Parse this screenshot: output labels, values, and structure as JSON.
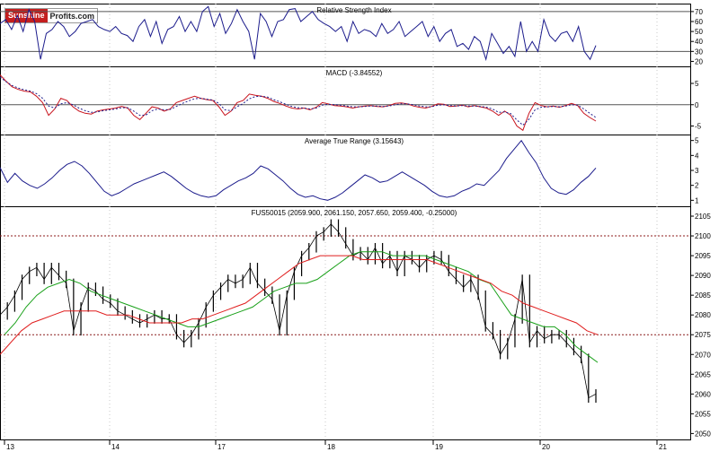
{
  "logo": {
    "part1": "Sunshine",
    "part2": "Profits.com"
  },
  "colors": {
    "rsi": "#1c1c8c",
    "macd": "#c8141e",
    "signal": "#1c1c8c",
    "atr": "#1c1c8c",
    "price": "#000000",
    "ma_short": "#18a018",
    "ma_long": "#e01e1e",
    "ref_line": "#8c1e1e",
    "grid": "#c8c8c8",
    "axis": "#000000"
  },
  "chart_data": [
    {
      "type": "line",
      "title": "Relative Strength Index",
      "y_ticks": [
        20,
        30,
        40,
        50,
        60,
        70
      ],
      "ylim": [
        15,
        78
      ],
      "reference_lines": [
        30,
        70
      ],
      "series": [
        {
          "values": [
            58,
            62,
            52,
            66,
            50,
            72,
            60,
            22,
            48,
            52,
            60,
            55,
            45,
            50,
            58,
            60,
            62,
            55,
            52,
            50,
            55,
            48,
            46,
            40,
            55,
            62,
            45,
            60,
            38,
            52,
            55,
            65,
            50,
            60,
            50,
            70,
            75,
            55,
            68,
            48,
            58,
            72,
            60,
            50,
            22,
            68,
            60,
            45,
            60,
            62,
            72,
            73,
            60,
            65,
            70,
            62,
            58,
            55,
            50,
            55,
            40,
            60,
            48,
            52,
            50,
            45,
            58,
            48,
            52,
            60,
            45,
            50,
            55,
            60,
            45,
            55,
            40,
            48,
            52,
            35,
            38,
            32,
            45,
            40,
            22,
            48,
            38,
            28,
            35,
            25,
            60,
            30,
            40,
            30,
            62,
            46,
            40,
            48,
            50,
            40,
            55,
            30,
            22,
            36
          ]
        }
      ]
    },
    {
      "type": "line",
      "title": "MACD (-3.84552)",
      "y_ticks": [
        -5,
        0,
        5
      ],
      "ylim": [
        -7,
        9
      ],
      "reference_lines": [
        0
      ],
      "series": [
        {
          "values": [
            7.0,
            5.5,
            4.2,
            3.6,
            3.2,
            3.0,
            2.0,
            0.5,
            -2.5,
            -1.0,
            1.5,
            1.0,
            -0.5,
            -1.5,
            -2.0,
            -2.2,
            -1.5,
            -1.2,
            -1.0,
            -0.8,
            -0.4,
            -0.8,
            -2.5,
            -3.5,
            -2.0,
            -0.5,
            -0.8,
            -1.5,
            -1.0,
            0.5,
            1.0,
            1.5,
            2.0,
            1.5,
            1.2,
            1.0,
            -0.5,
            -2.5,
            -1.5,
            0.5,
            1.0,
            2.5,
            2.2,
            2.0,
            1.5,
            0.8,
            0.3,
            -0.3,
            -0.8,
            -1.0,
            -0.8,
            -1.2,
            -0.6,
            0.5,
            0.2,
            -0.2,
            -0.3,
            -0.5,
            -0.8,
            -0.5,
            -0.3,
            -0.2,
            -0.4,
            -0.5,
            -0.2,
            0.3,
            0.4,
            0.2,
            -0.3,
            -0.6,
            -0.8,
            -0.4,
            0.2,
            0.1,
            -0.4,
            -0.3,
            -0.1,
            -0.5,
            -0.2,
            -0.5,
            -0.8,
            -1.5,
            -2.5,
            -1.5,
            -2.5,
            -5.0,
            -6.0,
            -2.0,
            0.5,
            -0.2,
            -0.5,
            -0.3,
            -0.6,
            -0.2,
            0.3,
            -0.2,
            -2.0,
            -3.0,
            -3.85
          ]
        },
        {
          "values": [
            6.5,
            5.4,
            4.5,
            3.9,
            3.5,
            3.2,
            2.6,
            1.5,
            -0.3,
            -0.8,
            0.2,
            0.5,
            0.0,
            -0.8,
            -1.4,
            -1.8,
            -1.7,
            -1.4,
            -1.2,
            -1.0,
            -0.7,
            -0.7,
            -1.5,
            -2.5,
            -2.4,
            -1.4,
            -1.0,
            -1.2,
            -1.1,
            -0.4,
            0.3,
            0.9,
            1.4,
            1.5,
            1.3,
            1.1,
            0.3,
            -1.2,
            -1.4,
            -0.5,
            0.3,
            1.4,
            1.9,
            2.0,
            1.8,
            1.2,
            0.7,
            0.1,
            -0.4,
            -0.7,
            -0.8,
            -1.0,
            -0.8,
            -0.1,
            0.1,
            0.0,
            -0.1,
            -0.3,
            -0.5,
            -0.5,
            -0.4,
            -0.3,
            -0.3,
            -0.4,
            -0.3,
            0.0,
            0.2,
            0.2,
            0.0,
            -0.3,
            -0.5,
            -0.5,
            -0.1,
            0.0,
            -0.2,
            -0.3,
            -0.2,
            -0.3,
            -0.3,
            -0.4,
            -0.6,
            -1.0,
            -1.8,
            -1.7,
            -2.1,
            -3.6,
            -4.8,
            -3.4,
            -1.2,
            -0.6,
            -0.5,
            -0.4,
            -0.5,
            -0.3,
            0.0,
            -0.1,
            -1.0,
            -2.0,
            -3.0
          ]
        }
      ]
    },
    {
      "type": "line",
      "title": "Average True Range (3.15643)",
      "y_ticks": [
        1,
        2,
        3,
        4,
        5
      ],
      "ylim": [
        0.6,
        5.4
      ],
      "series": [
        {
          "values": [
            3.2,
            2.2,
            2.8,
            2.3,
            2.0,
            1.8,
            2.1,
            2.5,
            3.0,
            3.4,
            3.6,
            3.3,
            2.8,
            2.2,
            1.6,
            1.3,
            1.5,
            1.8,
            2.1,
            2.3,
            2.5,
            2.7,
            2.9,
            2.6,
            2.2,
            1.8,
            1.5,
            1.3,
            1.2,
            1.3,
            1.7,
            2.0,
            2.3,
            2.5,
            2.8,
            3.3,
            3.1,
            2.7,
            2.3,
            1.8,
            1.4,
            1.2,
            1.3,
            1.1,
            1.0,
            1.2,
            1.5,
            1.9,
            2.3,
            2.7,
            2.5,
            2.2,
            2.3,
            2.6,
            2.9,
            2.6,
            2.3,
            2.0,
            1.6,
            1.3,
            1.2,
            1.3,
            1.6,
            1.8,
            2.1,
            2.0,
            2.5,
            3.0,
            3.8,
            4.4,
            5.0,
            4.2,
            3.5,
            2.5,
            1.8,
            1.5,
            1.4,
            1.7,
            2.2,
            2.6,
            3.16
          ]
        }
      ]
    },
    {
      "type": "line",
      "title": "FUS50015 (2059.900, 2061.150, 2057.650, 2059.400, -0.25000)",
      "x_tick_labels": [
        "13",
        "14",
        "17",
        "18",
        "19",
        "20",
        "21"
      ],
      "y_ticks": [
        2050,
        2055,
        2060,
        2065,
        2070,
        2075,
        2080,
        2085,
        2090,
        2095,
        2100,
        2105
      ],
      "ylim": [
        2048.5,
        2107.5
      ],
      "reference_lines": [
        2100,
        2075
      ],
      "series": [
        {
          "values": [
            2080,
            2082,
            2085,
            2089,
            2091,
            2092,
            2089,
            2092,
            2090,
            2088,
            2076,
            2082,
            2087,
            2086,
            2084,
            2083,
            2081,
            2080,
            2079,
            2078,
            2079,
            2080,
            2079,
            2079,
            2075,
            2073,
            2075,
            2078,
            2082,
            2085,
            2087,
            2089,
            2088,
            2089,
            2092,
            2088,
            2086,
            2084,
            2076,
            2085,
            2091,
            2095,
            2097,
            2100,
            2101,
            2103,
            2101,
            2098,
            2095,
            2096,
            2094,
            2097,
            2093,
            2095,
            2091,
            2095,
            2094,
            2092,
            2094,
            2095,
            2094,
            2091,
            2089,
            2087,
            2089,
            2085,
            2077,
            2075,
            2070,
            2073,
            2079,
            2089,
            2073,
            2076,
            2074,
            2075,
            2075,
            2073,
            2071,
            2069,
            2059,
            2060
          ]
        },
        {
          "values": [
            2075,
            2078,
            2082,
            2085,
            2087,
            2088,
            2089,
            2088,
            2086,
            2085,
            2084,
            2083,
            2082,
            2081,
            2080,
            2079,
            2078,
            2077,
            2077,
            2078,
            2079,
            2080,
            2081,
            2082,
            2084,
            2086,
            2087,
            2088,
            2088,
            2089,
            2091,
            2093,
            2095,
            2096,
            2096,
            2096,
            2095,
            2095,
            2095,
            2095,
            2094,
            2093,
            2092,
            2091,
            2089,
            2088,
            2084,
            2080,
            2079,
            2078,
            2077,
            2077,
            2075,
            2072,
            2070,
            2068
          ]
        },
        {
          "values": [
            2070,
            2073,
            2076,
            2078,
            2079,
            2080,
            2081,
            2081,
            2081,
            2081,
            2080,
            2080,
            2080,
            2079,
            2078,
            2078,
            2078,
            2078,
            2079,
            2079,
            2080,
            2081,
            2082,
            2083,
            2085,
            2087,
            2089,
            2091,
            2093,
            2094,
            2095,
            2095,
            2095,
            2095,
            2094,
            2094,
            2094,
            2094,
            2094,
            2094,
            2094,
            2093,
            2092,
            2091,
            2090,
            2089,
            2088,
            2086,
            2085,
            2083,
            2082,
            2081,
            2080,
            2079,
            2078,
            2076,
            2075
          ]
        }
      ]
    }
  ]
}
